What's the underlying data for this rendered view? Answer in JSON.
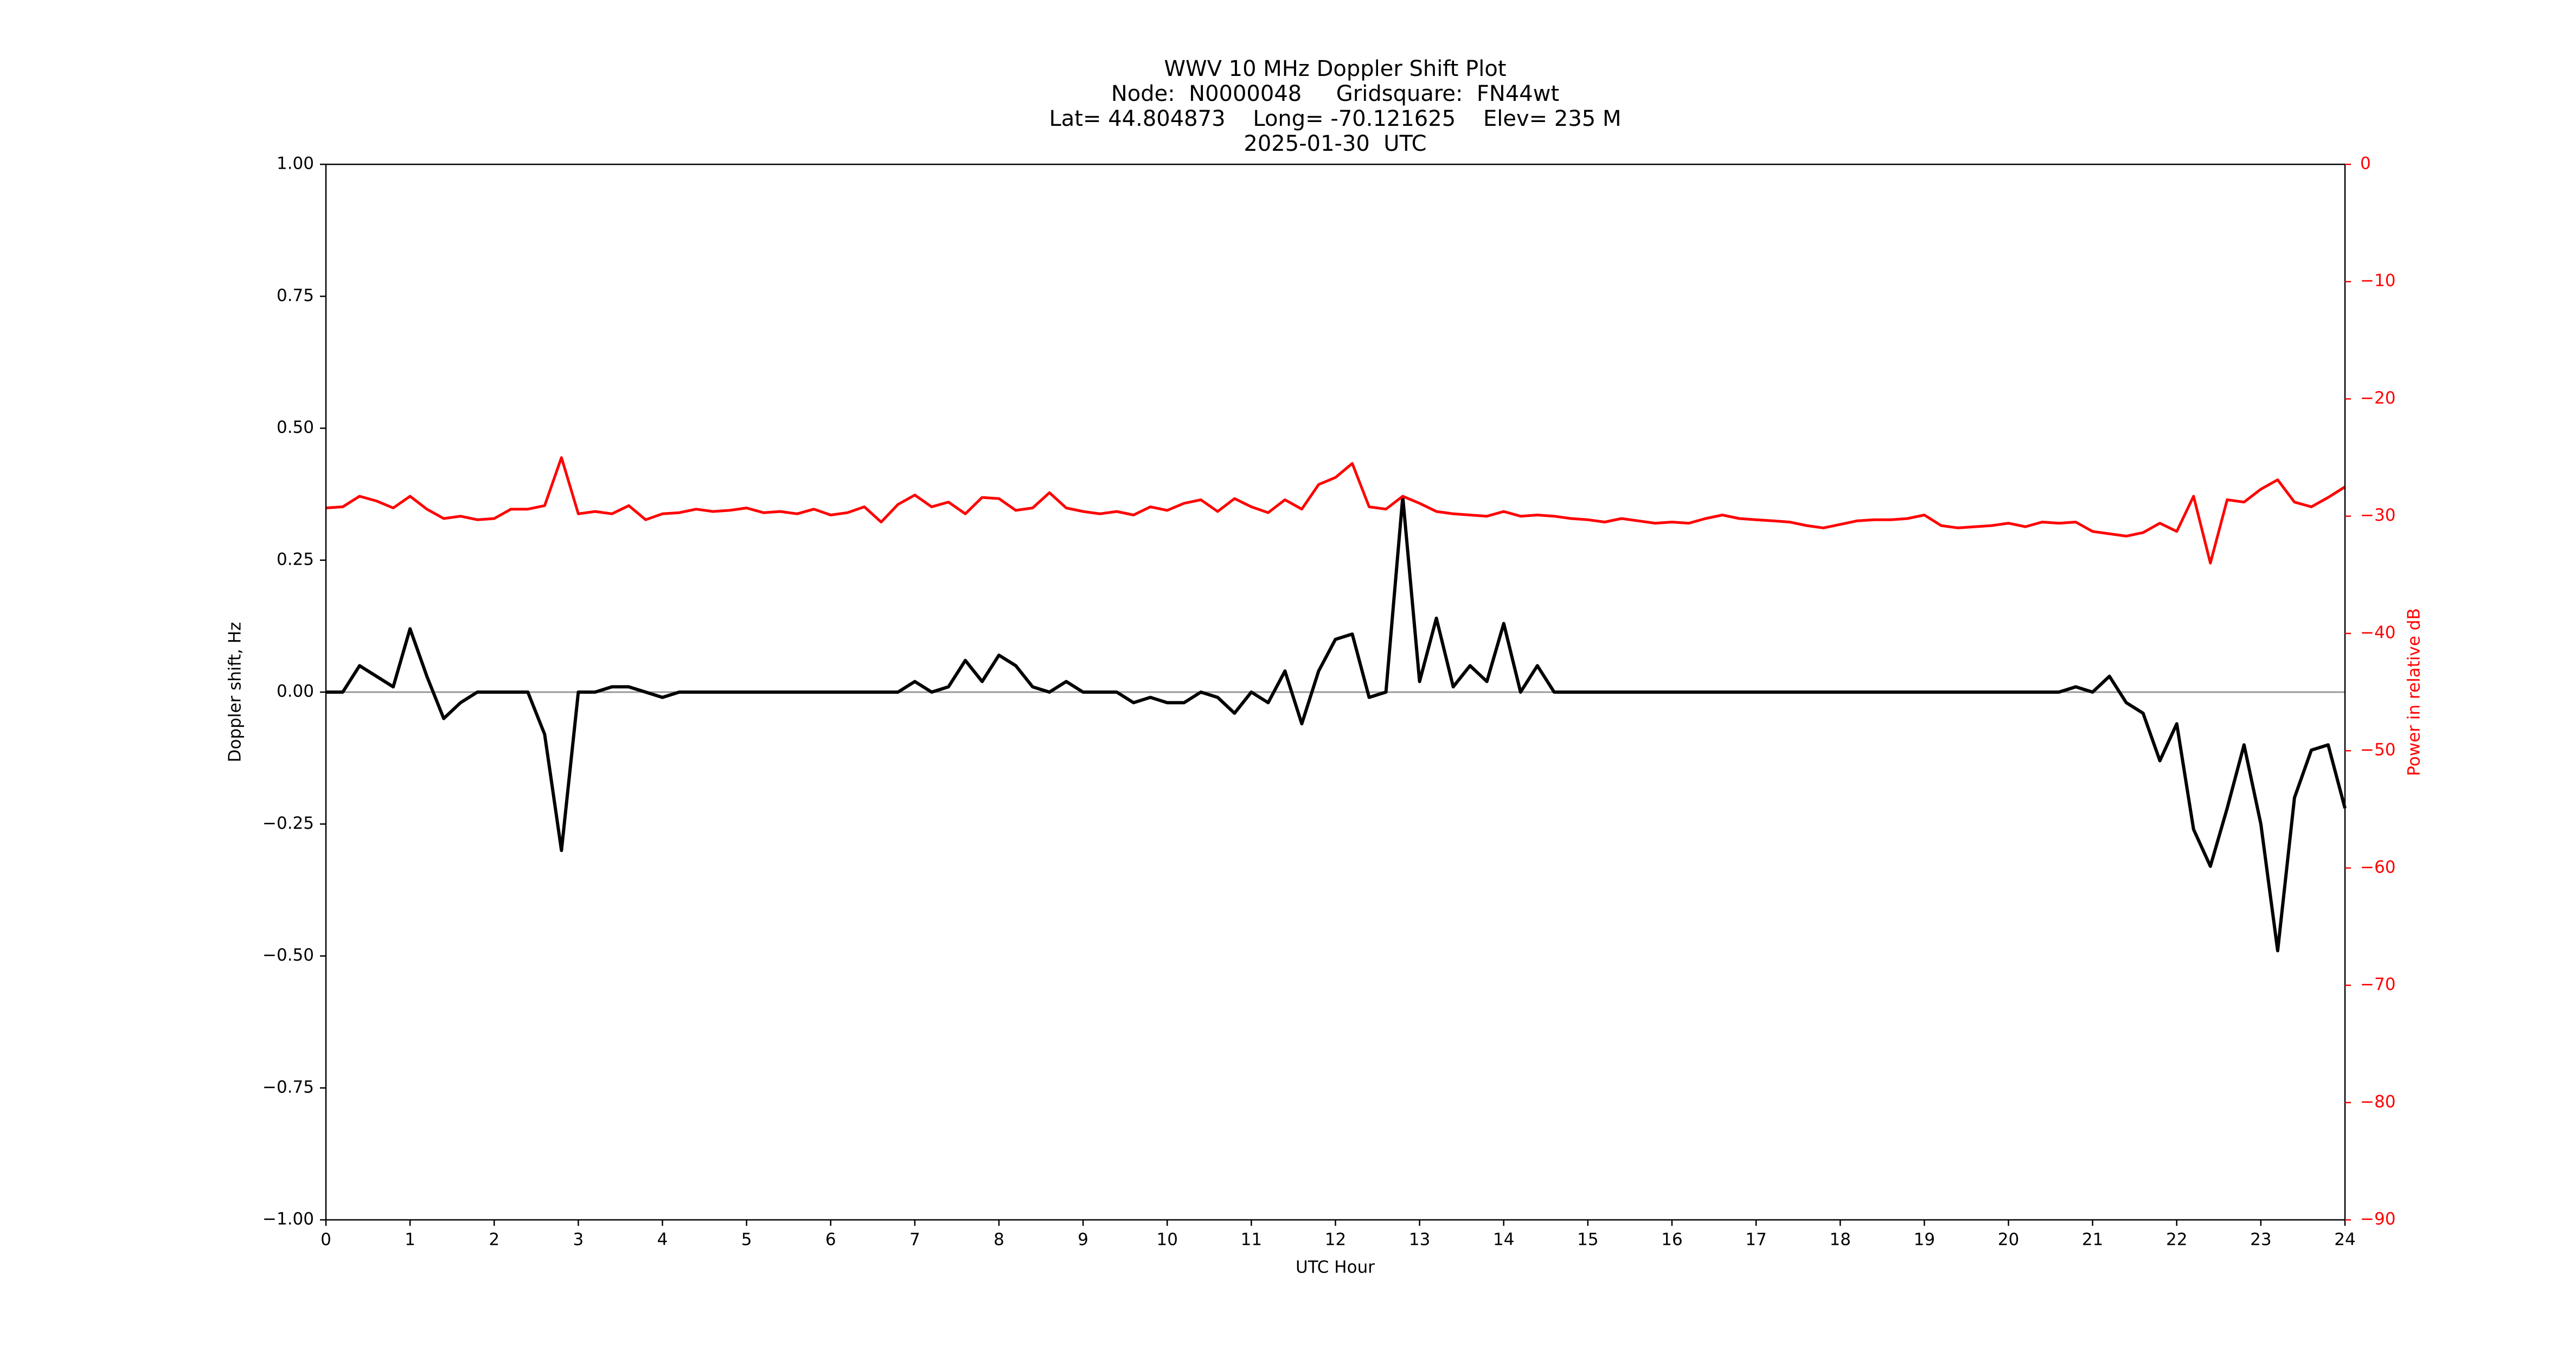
{
  "chart_data": {
    "type": "line",
    "title_lines": [
      "WWV 10 MHz Doppler Shift Plot",
      "Node:  N0000048     Gridsquare:  FN44wt",
      "Lat= 44.804873    Long= -70.121625    Elev= 235 M",
      "2025-01-30  UTC"
    ],
    "xlabel": "UTC Hour",
    "ylabel": "Doppler shift, Hz",
    "y2label": "Power in relative dB",
    "xlim": [
      0,
      24
    ],
    "xticks": [
      0,
      1,
      2,
      3,
      4,
      5,
      6,
      7,
      8,
      9,
      10,
      11,
      12,
      13,
      14,
      15,
      16,
      17,
      18,
      19,
      20,
      21,
      22,
      23,
      24
    ],
    "ylim": [
      -1,
      1
    ],
    "yticks": [
      {
        "value": -1,
        "label": "−1.00"
      },
      {
        "value": -0.75,
        "label": "−0.75"
      },
      {
        "value": -0.5,
        "label": "−0.50"
      },
      {
        "value": -0.25,
        "label": "−0.25"
      },
      {
        "value": 0,
        "label": "0.00"
      },
      {
        "value": 0.25,
        "label": "0.25"
      },
      {
        "value": 0.5,
        "label": "0.50"
      },
      {
        "value": 0.75,
        "label": "0.75"
      },
      {
        "value": 1,
        "label": "1.00"
      }
    ],
    "y2lim": [
      -90,
      0
    ],
    "y2ticks": [
      {
        "value": -90,
        "label": "−90"
      },
      {
        "value": -80,
        "label": "−80"
      },
      {
        "value": -70,
        "label": "−70"
      },
      {
        "value": -60,
        "label": "−60"
      },
      {
        "value": -50,
        "label": "−50"
      },
      {
        "value": -40,
        "label": "−40"
      },
      {
        "value": -30,
        "label": "−30"
      },
      {
        "value": -20,
        "label": "−20"
      },
      {
        "value": -10,
        "label": "−10"
      },
      0
    ],
    "y2color": "#ff0000",
    "hlines": [
      0
    ],
    "hline_color": "#999999",
    "x": [
      0,
      0.2,
      0.4,
      0.6,
      0.8,
      1,
      1.2,
      1.4,
      1.6,
      1.8,
      2,
      2.2,
      2.4,
      2.6,
      2.8,
      3,
      3.2,
      3.4,
      3.6,
      3.8,
      4,
      4.2,
      4.4,
      4.6,
      4.8,
      5,
      5.2,
      5.4,
      5.6,
      5.8,
      6,
      6.2,
      6.4,
      6.6,
      6.8,
      7,
      7.2,
      7.4,
      7.6,
      7.8,
      8,
      8.2,
      8.4,
      8.6,
      8.8,
      9,
      9.2,
      9.4,
      9.6,
      9.8,
      10,
      10.2,
      10.4,
      10.6,
      10.8,
      11,
      11.2,
      11.4,
      11.6,
      11.8,
      12,
      12.2,
      12.4,
      12.6,
      12.8,
      13,
      13.2,
      13.4,
      13.6,
      13.8,
      14,
      14.2,
      14.4,
      14.6,
      14.8,
      15,
      15.2,
      15.4,
      15.6,
      15.8,
      16,
      16.2,
      16.4,
      16.6,
      16.8,
      17,
      17.2,
      17.4,
      17.6,
      17.8,
      18,
      18.2,
      18.4,
      18.6,
      18.8,
      19,
      19.2,
      19.4,
      19.6,
      19.8,
      20,
      20.2,
      20.4,
      20.6,
      20.8,
      21,
      21.2,
      21.4,
      21.6,
      21.8,
      22,
      22.2,
      22.4,
      22.6,
      22.8,
      23,
      23.2,
      23.4,
      23.6,
      23.8,
      24
    ],
    "series": [
      {
        "color": "#000000",
        "values": [
          0,
          0,
          0.05,
          0.03,
          0.01,
          0.12,
          0.03,
          -0.05,
          -0.02,
          0,
          0,
          0,
          0,
          -0.08,
          -0.3,
          0,
          0,
          0.01,
          0.01,
          0,
          -0.01,
          0,
          0,
          0,
          0,
          0,
          0,
          0,
          0,
          0,
          0,
          0,
          0,
          0,
          0,
          0.02,
          0,
          0.01,
          0.06,
          0.02,
          0.07,
          0.05,
          0.01,
          0,
          0.02,
          0,
          0,
          0,
          -0.02,
          -0.01,
          -0.02,
          -0.02,
          0,
          -0.01,
          -0.04,
          0,
          -0.02,
          0.04,
          -0.06,
          0.04,
          0.1,
          0.11,
          -0.01,
          0,
          0.37,
          0.02,
          0.14,
          0.01,
          0.05,
          0.02,
          0.13,
          0,
          0.05,
          0,
          0,
          0,
          0,
          0,
          0,
          0,
          0,
          0,
          0,
          0,
          0,
          0,
          0,
          0,
          0,
          0,
          0,
          0,
          0,
          0,
          0,
          0,
          0,
          0,
          0,
          0,
          0,
          0,
          0,
          0,
          0.01,
          0,
          0.03,
          -0.02,
          -0.04,
          -0.13,
          -0.06,
          -0.26,
          -0.33,
          -0.22,
          -0.1,
          -0.25,
          -0.49,
          -0.2,
          -0.11,
          -0.1,
          -0.22
        ]
      },
      {
        "color": "#ff0000",
        "axis": "y2",
        "values": [
          -29.3,
          -29.2,
          -28.3,
          -28.7,
          -29.3,
          -28.3,
          -29.4,
          -30.2,
          -30,
          -30.3,
          -30.2,
          -29.4,
          -29.4,
          -29.1,
          -25,
          -29.8,
          -29.6,
          -29.8,
          -29.1,
          -30.3,
          -29.8,
          -29.7,
          -29.4,
          -29.6,
          -29.5,
          -29.3,
          -29.7,
          -29.6,
          -29.8,
          -29.4,
          -29.9,
          -29.7,
          -29.2,
          -30.5,
          -29,
          -28.2,
          -29.2,
          -28.8,
          -29.8,
          -28.4,
          -28.5,
          -29.5,
          -29.3,
          -28,
          -29.3,
          -29.6,
          -29.8,
          -29.6,
          -29.9,
          -29.2,
          -29.5,
          -28.9,
          -28.6,
          -29.6,
          -28.5,
          -29.2,
          -29.7,
          -28.6,
          -29.4,
          -27.3,
          -26.7,
          -25.5,
          -29.2,
          -29.4,
          -28.3,
          -28.9,
          -29.6,
          -29.8,
          -29.9,
          -30,
          -29.6,
          -30,
          -29.9,
          -30,
          -30.2,
          -30.3,
          -30.5,
          -30.2,
          -30.4,
          -30.6,
          -30.5,
          -30.6,
          -30.2,
          -29.9,
          -30.2,
          -30.3,
          -30.4,
          -30.5,
          -30.8,
          -31,
          -30.7,
          -30.4,
          -30.3,
          -30.3,
          -30.2,
          -29.9,
          -30.8,
          -31,
          -30.9,
          -30.8,
          -30.6,
          -30.9,
          -30.5,
          -30.6,
          -30.5,
          -31.3,
          -31.5,
          -31.7,
          -31.4,
          -30.6,
          -31.3,
          -28.3,
          -34,
          -28.6,
          -28.8,
          -27.7,
          -26.9,
          -28.8,
          -29.2,
          -28.4,
          -27.5
        ]
      }
    ]
  }
}
